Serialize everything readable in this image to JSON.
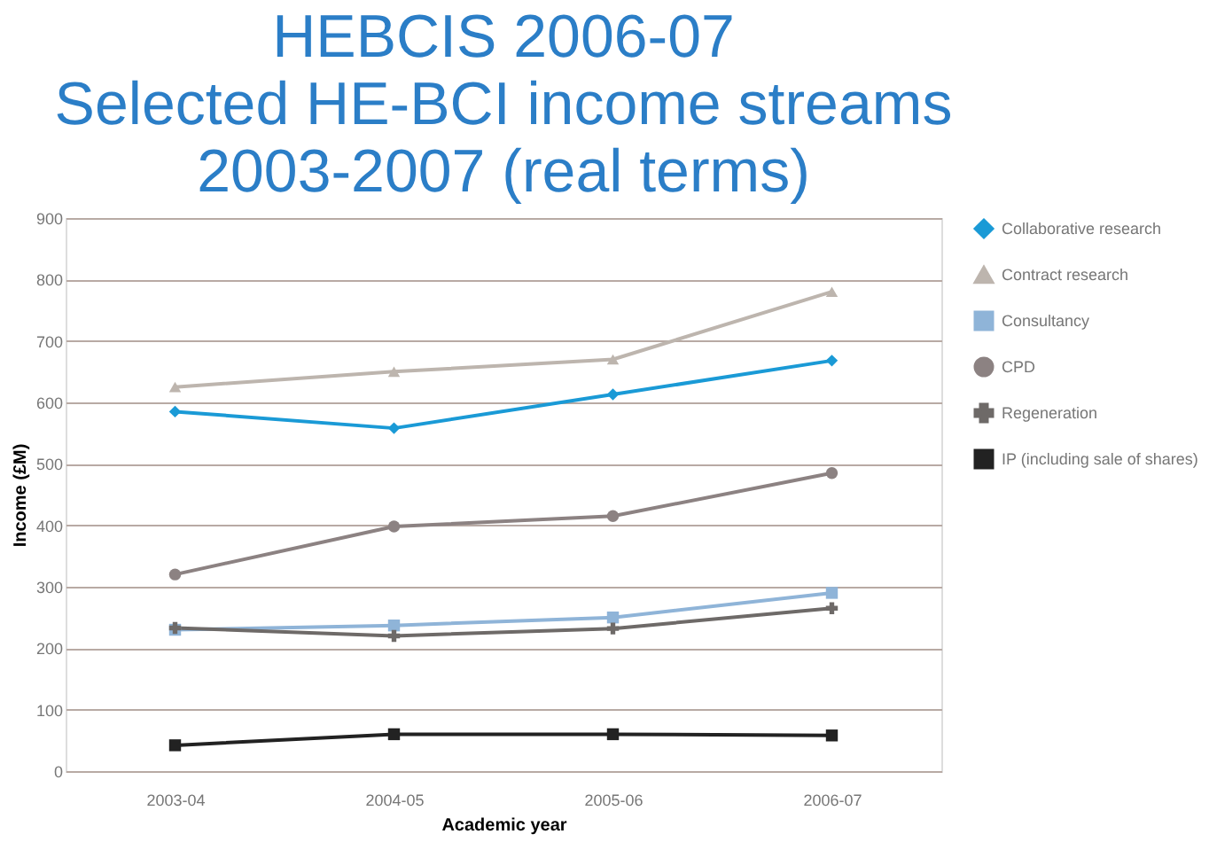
{
  "chart_data": {
    "type": "line",
    "title": "HEBCIS 2006-07\nSelected HE-BCI income streams\n2003-2007 (real terms)",
    "xlabel": "Academic year",
    "ylabel": "Income (£M)",
    "categories": [
      "2003-04",
      "2004-05",
      "2005-06",
      "2006-07"
    ],
    "series": [
      {
        "name": "Collaborative research",
        "color": "#1a9ad6",
        "marker": "diamond",
        "values": [
          585,
          558,
          613,
          668
        ]
      },
      {
        "name": "Contract research",
        "color": "#bdb5ae",
        "marker": "triangle",
        "values": [
          625,
          650,
          670,
          780
        ]
      },
      {
        "name": "Consultancy",
        "color": "#8fb4d8",
        "marker": "square",
        "values": [
          230,
          237,
          250,
          290
        ]
      },
      {
        "name": "CPD",
        "color": "#8c8282",
        "marker": "circle",
        "values": [
          320,
          398,
          415,
          485
        ]
      },
      {
        "name": "Regeneration",
        "color": "#6e6a68",
        "marker": "cross",
        "values": [
          233,
          220,
          232,
          265
        ]
      },
      {
        "name": "IP (including sale of shares)",
        "color": "#222222",
        "marker": "square",
        "values": [
          42,
          60,
          60,
          58
        ]
      }
    ],
    "ylim": [
      0,
      900
    ],
    "yticks": [
      0,
      100,
      200,
      300,
      400,
      500,
      600,
      700,
      800,
      900
    ],
    "grid": "y",
    "legend": "right",
    "line_style": "solid"
  }
}
